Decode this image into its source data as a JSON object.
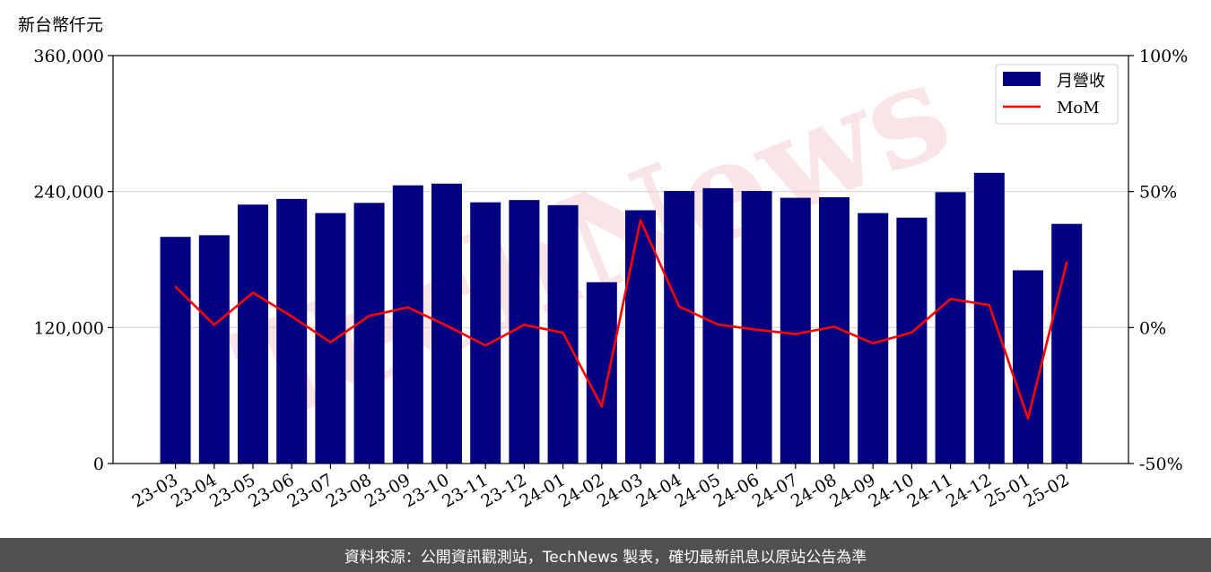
{
  "chart_data": {
    "type": "bar",
    "unit_label": "新台幣仟元",
    "categories": [
      "23-03",
      "23-04",
      "23-05",
      "23-06",
      "23-07",
      "23-08",
      "23-09",
      "23-10",
      "23-11",
      "23-12",
      "24-01",
      "24-02",
      "24-03",
      "24-04",
      "24-05",
      "24-06",
      "24-07",
      "24-08",
      "24-09",
      "24-10",
      "24-11",
      "24-12",
      "25-01",
      "25-02"
    ],
    "series": [
      {
        "name": "月營收",
        "kind": "bar",
        "axis": "left",
        "color": "#000080",
        "values": [
          200000,
          201500,
          228500,
          233500,
          221000,
          230000,
          245500,
          247000,
          230500,
          232500,
          228000,
          160000,
          223500,
          240500,
          243000,
          240500,
          234500,
          235000,
          221000,
          217000,
          239500,
          256500,
          170500,
          211500
        ]
      },
      {
        "name": "MoM",
        "kind": "line",
        "axis": "right",
        "color": "#ff0000",
        "values": [
          15.0,
          1.0,
          12.8,
          4.1,
          -5.4,
          4.3,
          7.4,
          0.7,
          -6.6,
          1.0,
          -1.9,
          -29.0,
          39.5,
          7.7,
          1.1,
          -0.8,
          -2.4,
          0.3,
          -5.8,
          -1.8,
          10.5,
          8.3,
          -33.5,
          24.0
        ]
      }
    ],
    "y_left": {
      "min": 0,
      "max": 360000,
      "ticks": [
        0,
        120000,
        240000,
        360000
      ],
      "tick_labels": [
        "0",
        "120,000",
        "240,000",
        "360,000"
      ]
    },
    "y_right": {
      "min": -50,
      "max": 100,
      "ticks": [
        -50,
        0,
        50,
        100
      ],
      "tick_labels": [
        "-50%",
        "0%",
        "50%",
        "100%"
      ]
    },
    "grid": "horizontal",
    "legend_position": "top-right"
  },
  "watermark": "TechNews",
  "footer": {
    "text": "資料來源：公開資訊觀測站，TechNews 製表，確切最新訊息以原站公告為準"
  }
}
